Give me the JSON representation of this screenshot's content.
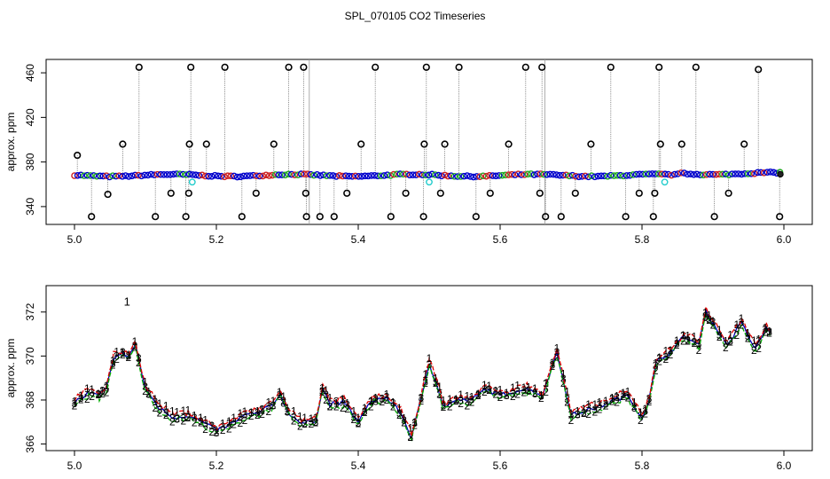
{
  "chart_data": [
    {
      "type": "scatter",
      "title": "SPL_070105  CO2 Timeseries",
      "xlabel": "",
      "ylabel": "approx. ppm",
      "xlim": [
        4.96,
        6.04
      ],
      "ylim": [
        324,
        472
      ],
      "x_ticks": [
        5.0,
        5.2,
        5.4,
        5.6,
        5.8,
        6.0
      ],
      "x_tick_labels": [
        "5.0",
        "5.2",
        "5.4",
        "5.6",
        "5.8",
        "6.0"
      ],
      "y_ticks": [
        340,
        380,
        420,
        460
      ],
      "y_tick_labels": [
        "340",
        "380",
        "420",
        "460"
      ],
      "baseline_ppm": 368,
      "outliers": [
        {
          "x": 5.004,
          "y": 386
        },
        {
          "x": 5.024,
          "y": 331
        },
        {
          "x": 5.047,
          "y": 351
        },
        {
          "x": 5.068,
          "y": 396
        },
        {
          "x": 5.091,
          "y": 465
        },
        {
          "x": 5.114,
          "y": 331
        },
        {
          "x": 5.136,
          "y": 352
        },
        {
          "x": 5.157,
          "y": 331
        },
        {
          "x": 5.161,
          "y": 352
        },
        {
          "x": 5.162,
          "y": 396
        },
        {
          "x": 5.164,
          "y": 465
        },
        {
          "x": 5.186,
          "y": 396
        },
        {
          "x": 5.212,
          "y": 465
        },
        {
          "x": 5.236,
          "y": 331
        },
        {
          "x": 5.256,
          "y": 352
        },
        {
          "x": 5.281,
          "y": 396
        },
        {
          "x": 5.302,
          "y": 465
        },
        {
          "x": 5.323,
          "y": 465
        },
        {
          "x": 5.326,
          "y": 352
        },
        {
          "x": 5.327,
          "y": 331
        },
        {
          "x": 5.346,
          "y": 331
        },
        {
          "x": 5.366,
          "y": 331
        },
        {
          "x": 5.384,
          "y": 352
        },
        {
          "x": 5.404,
          "y": 396
        },
        {
          "x": 5.424,
          "y": 465
        },
        {
          "x": 5.446,
          "y": 331
        },
        {
          "x": 5.467,
          "y": 352
        },
        {
          "x": 5.492,
          "y": 331
        },
        {
          "x": 5.493,
          "y": 396
        },
        {
          "x": 5.496,
          "y": 465
        },
        {
          "x": 5.516,
          "y": 352
        },
        {
          "x": 5.522,
          "y": 396
        },
        {
          "x": 5.542,
          "y": 465
        },
        {
          "x": 5.566,
          "y": 331
        },
        {
          "x": 5.586,
          "y": 352
        },
        {
          "x": 5.612,
          "y": 396
        },
        {
          "x": 5.636,
          "y": 465
        },
        {
          "x": 5.656,
          "y": 352
        },
        {
          "x": 5.659,
          "y": 465
        },
        {
          "x": 5.664,
          "y": 331
        },
        {
          "x": 5.686,
          "y": 331
        },
        {
          "x": 5.706,
          "y": 352
        },
        {
          "x": 5.728,
          "y": 396
        },
        {
          "x": 5.756,
          "y": 465
        },
        {
          "x": 5.777,
          "y": 331
        },
        {
          "x": 5.796,
          "y": 352
        },
        {
          "x": 5.816,
          "y": 331
        },
        {
          "x": 5.818,
          "y": 352
        },
        {
          "x": 5.824,
          "y": 465
        },
        {
          "x": 5.826,
          "y": 396
        },
        {
          "x": 5.856,
          "y": 396
        },
        {
          "x": 5.876,
          "y": 465
        },
        {
          "x": 5.902,
          "y": 331
        },
        {
          "x": 5.922,
          "y": 352
        },
        {
          "x": 5.944,
          "y": 396
        },
        {
          "x": 5.964,
          "y": 463
        },
        {
          "x": 5.994,
          "y": 331
        }
      ],
      "cyan_points": [
        {
          "x": 5.166,
          "y": 362
        },
        {
          "x": 5.5,
          "y": 362
        },
        {
          "x": 5.832,
          "y": 362
        }
      ]
    },
    {
      "type": "line",
      "title": "",
      "xlabel": "",
      "ylabel": "approx. ppm",
      "xlim": [
        4.96,
        6.04
      ],
      "ylim": [
        365.7,
        373.2
      ],
      "x_ticks": [
        5.0,
        5.2,
        5.4,
        5.6,
        5.8,
        6.0
      ],
      "x_tick_labels": [
        "5.0",
        "5.2",
        "5.4",
        "5.6",
        "5.8",
        "6.0"
      ],
      "y_ticks": [
        366,
        368,
        370,
        372
      ],
      "y_tick_labels": [
        "366",
        "368",
        "370",
        "372"
      ],
      "series": [
        {
          "name": "1",
          "color": "#dd0000",
          "offset": 0.15
        },
        {
          "name": "2",
          "color": "#00aa00",
          "offset": -0.12
        },
        {
          "name": "3",
          "color": "#0000bb",
          "offset": 0.0
        }
      ],
      "x": [
        5.0,
        5.02,
        5.035,
        5.045,
        5.055,
        5.068,
        5.076,
        5.086,
        5.1,
        5.12,
        5.14,
        5.16,
        5.18,
        5.2,
        5.22,
        5.24,
        5.26,
        5.28,
        5.29,
        5.3,
        5.32,
        5.34,
        5.35,
        5.36,
        5.38,
        5.4,
        5.42,
        5.44,
        5.46,
        5.475,
        5.49,
        5.5,
        5.51,
        5.52,
        5.54,
        5.56,
        5.58,
        5.6,
        5.62,
        5.64,
        5.66,
        5.68,
        5.69,
        5.7,
        5.72,
        5.74,
        5.76,
        5.78,
        5.8,
        5.81,
        5.82,
        5.84,
        5.86,
        5.88,
        5.89,
        5.9,
        5.92,
        5.94,
        5.96,
        5.975,
        5.98
      ],
      "values": [
        367.9,
        368.3,
        368.2,
        368.5,
        369.9,
        370.1,
        370.0,
        370.5,
        368.5,
        367.6,
        367.2,
        367.3,
        367.0,
        366.6,
        366.9,
        367.3,
        367.4,
        367.8,
        368.3,
        367.5,
        366.9,
        367.1,
        368.5,
        367.8,
        367.9,
        367.0,
        368.0,
        368.1,
        367.4,
        366.3,
        368.2,
        369.7,
        368.8,
        367.7,
        368.0,
        368.0,
        368.5,
        368.2,
        368.4,
        368.5,
        368.2,
        370.2,
        368.8,
        367.3,
        367.5,
        367.7,
        368.0,
        368.2,
        367.2,
        368.0,
        369.7,
        370.2,
        370.9,
        370.5,
        372.0,
        371.5,
        370.5,
        371.5,
        370.3,
        371.3,
        371.1
      ]
    }
  ]
}
